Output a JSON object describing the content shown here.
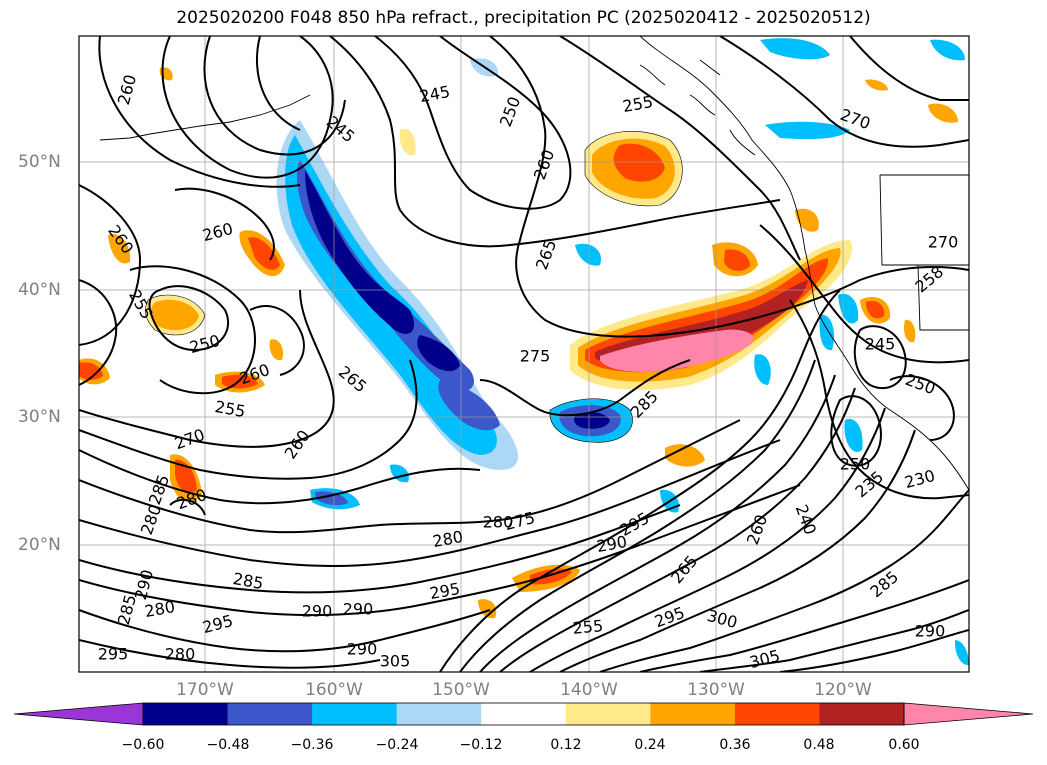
{
  "title": "2025020200 F048 850 hPa refract., precipitation PC (2025020412 - 2025020512)",
  "lat_labels": [
    "50°N",
    "40°N",
    "30°N",
    "20°N"
  ],
  "lon_labels": [
    "170°W",
    "160°W",
    "150°W",
    "140°W",
    "130°W",
    "120°W"
  ],
  "colorbar": {
    "ticks": [
      "−0.60",
      "−0.48",
      "−0.36",
      "−0.24",
      "−0.12",
      "0.12",
      "0.24",
      "0.36",
      "0.48",
      "0.60"
    ],
    "colors": [
      "#9b35d6",
      "#00008b",
      "#3b57c9",
      "#00bfff",
      "#add8f5",
      "#ffffff",
      "#ffe98a",
      "#ffa500",
      "#ff4500",
      "#b22222",
      "#ff85aa"
    ]
  },
  "contour_labels": [
    "260",
    "245",
    "245",
    "250",
    "255",
    "270",
    "260",
    "260",
    "260",
    "265",
    "270",
    "255",
    "250",
    "260",
    "255",
    "265",
    "275",
    "285",
    "260",
    "270",
    "285",
    "280",
    "280",
    "275",
    "280",
    "295",
    "290",
    "265",
    "260",
    "240",
    "250",
    "235",
    "230",
    "245",
    "250",
    "258",
    "280",
    "285",
    "290",
    "280",
    "295",
    "290",
    "295",
    "290",
    "285",
    "255",
    "295",
    "300",
    "305",
    "285",
    "290",
    "295",
    "280",
    "290",
    "305"
  ]
}
